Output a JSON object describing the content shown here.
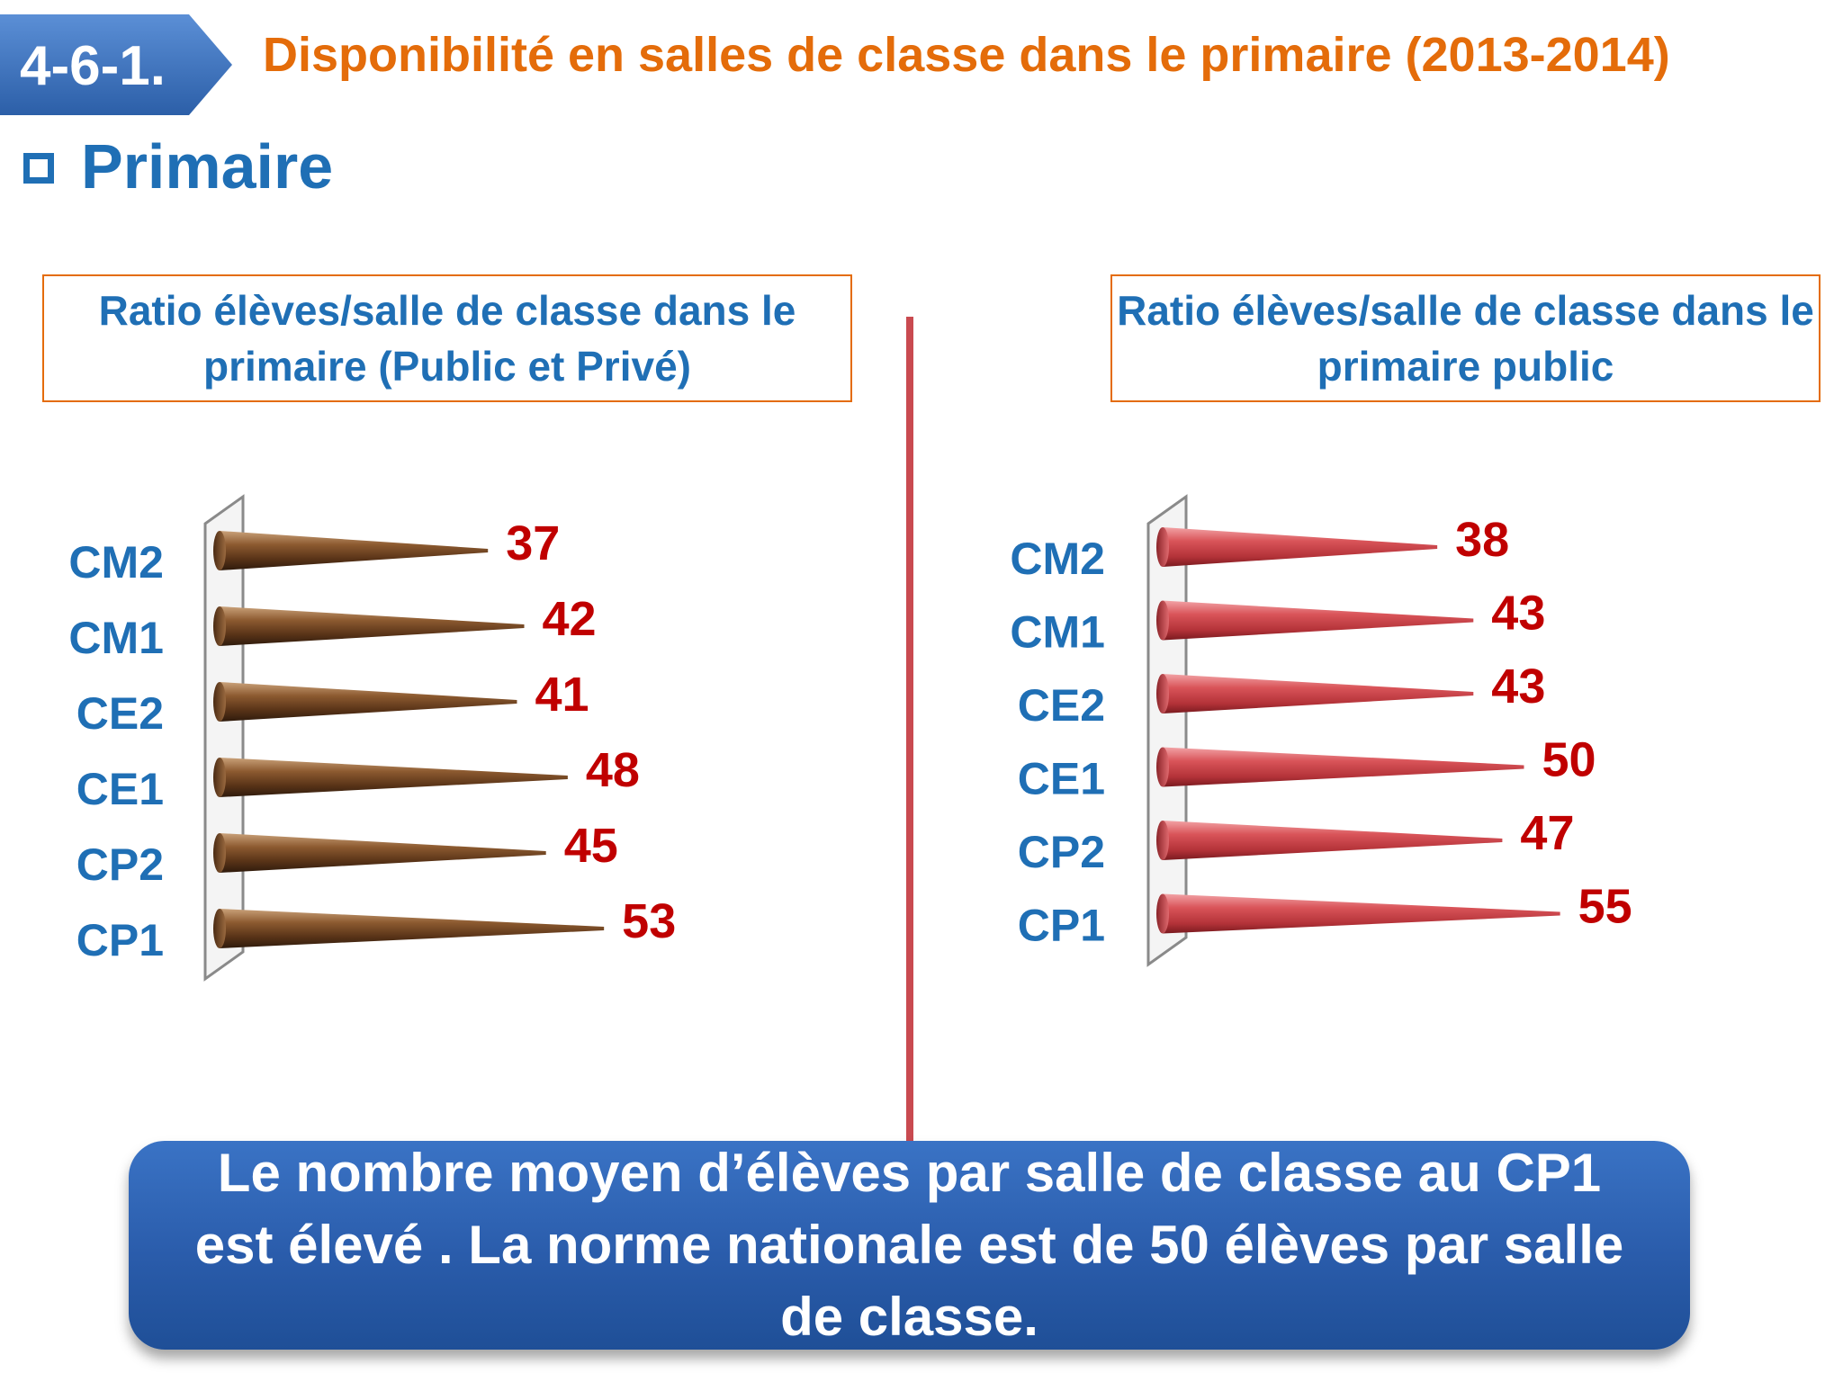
{
  "slide": {
    "section_number": "4-6-1.",
    "title": "Disponibilité en salles de classe dans le primaire (2013-2014)",
    "section_label": "Primaire",
    "callout_text": "Le nombre moyen d’élèves  par salle de classe au CP1  est élevé . La  norme nationale est de 50 élèves par salle de classe."
  },
  "colors": {
    "accent_orange": "#e46c0a",
    "label_blue": "#1f6fb5",
    "value_red": "#c00000",
    "bar_brown": "#7a4a25",
    "bar_red": "#d24a4f",
    "divider": "#c94a50",
    "callout_blue": "#2a5cab"
  },
  "chart_data": [
    {
      "type": "bar",
      "title": "Ratio élèves/salle de classe dans le primaire (Public et Privé)",
      "categories": [
        "CM2",
        "CM1",
        "CE2",
        "CE1",
        "CP2",
        "CP1"
      ],
      "values": [
        37,
        42,
        41,
        48,
        45,
        53
      ],
      "orientation": "horizontal",
      "bar_shape": "cone"
    },
    {
      "type": "bar",
      "title": "Ratio élèves/salle de classe dans le primaire public",
      "categories": [
        "CM2",
        "CM1",
        "CE2",
        "CE1",
        "CP2",
        "CP1"
      ],
      "values": [
        38,
        43,
        43,
        50,
        47,
        55
      ],
      "orientation": "horizontal",
      "bar_shape": "cone"
    }
  ]
}
